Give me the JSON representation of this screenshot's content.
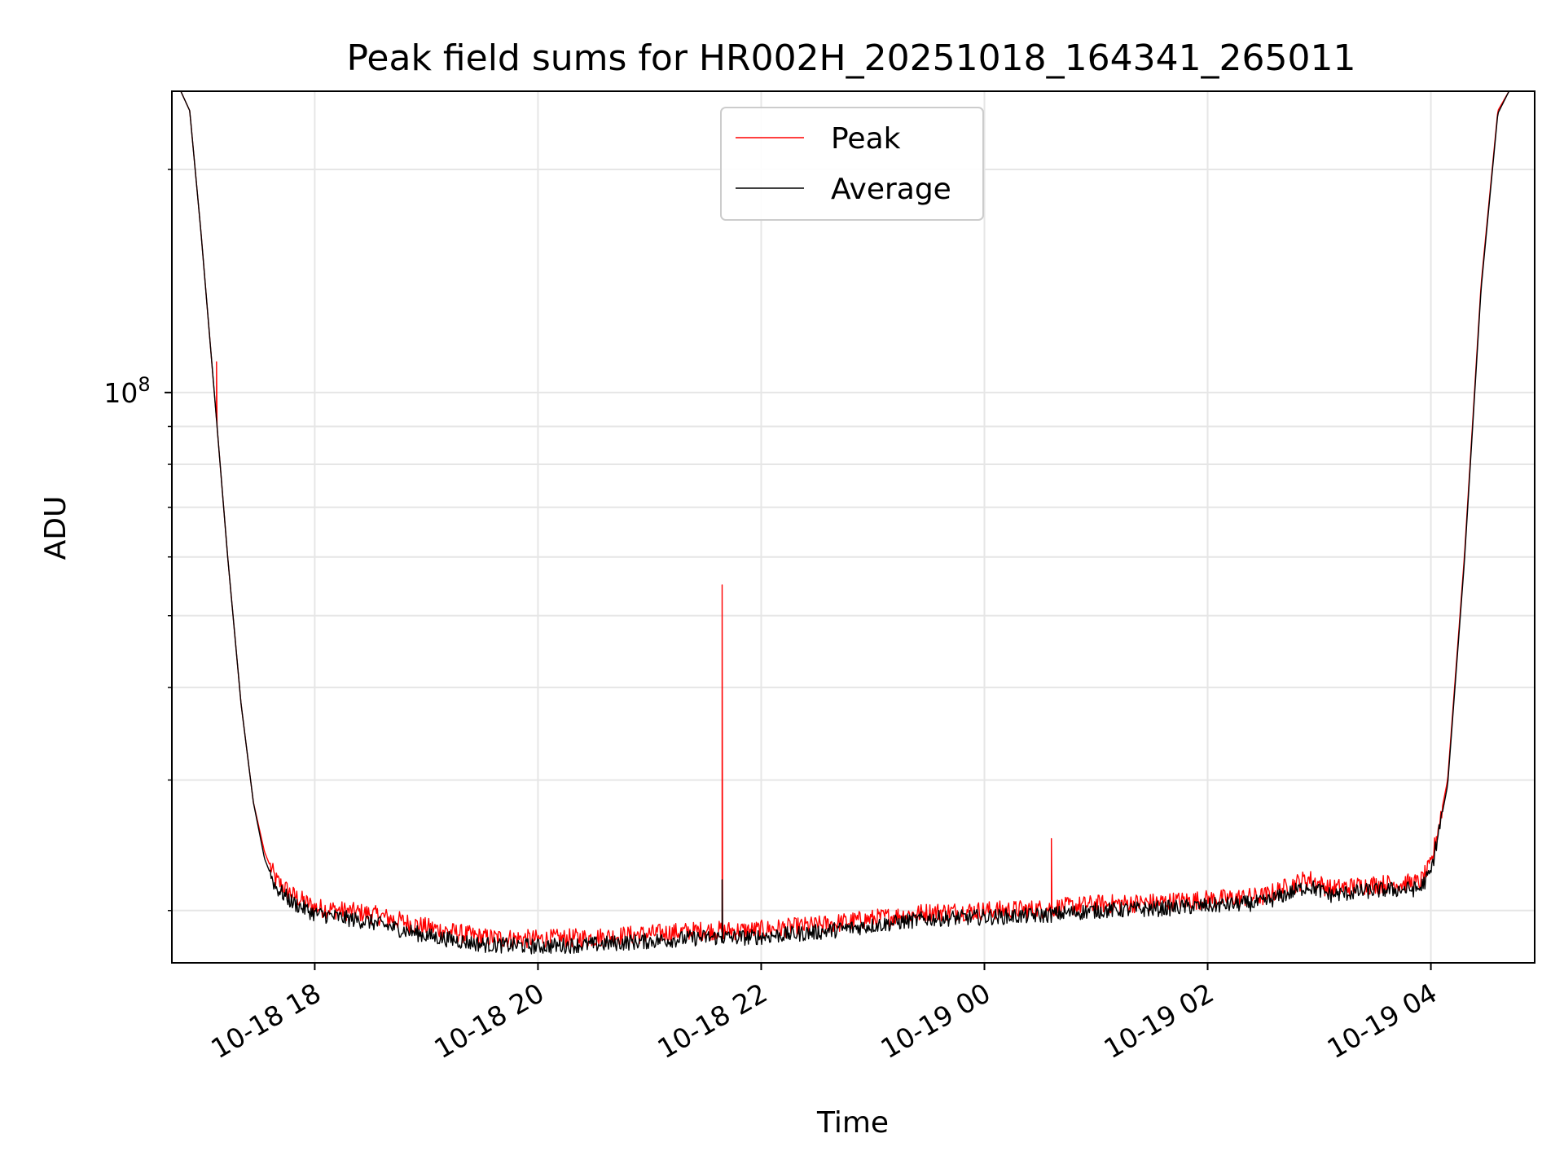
{
  "chart_data": {
    "type": "line",
    "title": "Peak field sums for HR002H_20251018_164341_265011",
    "xlabel": "Time",
    "ylabel": "ADU",
    "yscale": "log",
    "ylim": [
      17000000,
      255000000
    ],
    "xlim_hours": [
      -1.28,
      10.93
    ],
    "x_unit": "hours since 10-18 18:00",
    "grid": true,
    "legend_position": "top-center",
    "x_ticks": [
      {
        "label": "10-18 18",
        "value": 0
      },
      {
        "label": "10-18 20",
        "value": 2
      },
      {
        "label": "10-18 22",
        "value": 4
      },
      {
        "label": "10-19 00",
        "value": 6
      },
      {
        "label": "10-19 02",
        "value": 8
      },
      {
        "label": "10-19 04",
        "value": 10
      }
    ],
    "y_tick_main": {
      "value": 100000000,
      "base": "10",
      "exp": "8"
    },
    "y_minor_ticks": [
      20000000,
      30000000,
      40000000,
      50000000,
      60000000,
      70000000,
      80000000,
      90000000,
      200000000
    ],
    "series": [
      {
        "name": "Peak",
        "color": "#ff0000",
        "points": [
          [
            -1.2,
            255000000
          ],
          [
            -1.12,
            240000000
          ],
          [
            -1.02,
            165000000
          ],
          [
            -0.9,
            100000000
          ],
          [
            -0.78,
            60000000
          ],
          [
            -0.66,
            38000000
          ],
          [
            -0.55,
            28000000
          ],
          [
            -0.45,
            24000000
          ],
          [
            -0.35,
            22000000
          ],
          [
            -0.2,
            21000000
          ],
          [
            0.0,
            20200000
          ],
          [
            0.5,
            19800000
          ],
          [
            1.0,
            19000000
          ],
          [
            1.5,
            18400000
          ],
          [
            2.0,
            18300000
          ],
          [
            2.5,
            18400000
          ],
          [
            3.0,
            18600000
          ],
          [
            3.5,
            18800000
          ],
          [
            3.9,
            18800000
          ],
          [
            4.5,
            19100000
          ],
          [
            5.0,
            19500000
          ],
          [
            5.5,
            19900000
          ],
          [
            6.0,
            20000000
          ],
          [
            6.5,
            20100000
          ],
          [
            7.0,
            20400000
          ],
          [
            7.5,
            20500000
          ],
          [
            8.0,
            20700000
          ],
          [
            8.5,
            20900000
          ],
          [
            8.8,
            21800000
          ],
          [
            8.9,
            22100000
          ],
          [
            9.1,
            21400000
          ],
          [
            9.5,
            21700000
          ],
          [
            9.9,
            21800000
          ],
          [
            10.0,
            23000000
          ],
          [
            10.15,
            30000000
          ],
          [
            10.3,
            60000000
          ],
          [
            10.45,
            140000000
          ],
          [
            10.6,
            240000000
          ],
          [
            10.7,
            255000000
          ]
        ],
        "noise_ratio": 0.03,
        "spikes": [
          {
            "x": 3.65,
            "y": 55000000
          },
          {
            "x": 6.6,
            "y": 25000000
          },
          {
            "x": -0.88,
            "y": 110000000
          }
        ]
      },
      {
        "name": "Average",
        "color": "#000000",
        "points": [
          [
            -1.2,
            255000000
          ],
          [
            -1.12,
            240000000
          ],
          [
            -1.02,
            165000000
          ],
          [
            -0.9,
            100000000
          ],
          [
            -0.78,
            60000000
          ],
          [
            -0.66,
            38000000
          ],
          [
            -0.55,
            28000000
          ],
          [
            -0.45,
            23500000
          ],
          [
            -0.35,
            21500000
          ],
          [
            -0.2,
            20500000
          ],
          [
            0.0,
            19800000
          ],
          [
            0.5,
            19300000
          ],
          [
            1.0,
            18500000
          ],
          [
            1.5,
            18000000
          ],
          [
            2.0,
            17900000
          ],
          [
            2.5,
            18000000
          ],
          [
            3.0,
            18200000
          ],
          [
            3.5,
            18400000
          ],
          [
            3.9,
            18400000
          ],
          [
            4.5,
            18700000
          ],
          [
            5.0,
            19100000
          ],
          [
            5.5,
            19500000
          ],
          [
            6.0,
            19600000
          ],
          [
            6.5,
            19700000
          ],
          [
            7.0,
            20000000
          ],
          [
            7.5,
            20100000
          ],
          [
            8.0,
            20300000
          ],
          [
            8.5,
            20500000
          ],
          [
            8.8,
            21300000
          ],
          [
            8.9,
            21600000
          ],
          [
            9.1,
            21000000
          ],
          [
            9.5,
            21300000
          ],
          [
            9.9,
            21400000
          ],
          [
            10.0,
            22500000
          ],
          [
            10.15,
            29500000
          ],
          [
            10.3,
            59000000
          ],
          [
            10.45,
            138000000
          ],
          [
            10.6,
            238000000
          ],
          [
            10.7,
            255000000
          ]
        ],
        "noise_ratio": 0.025,
        "spikes": [
          {
            "x": 3.65,
            "y": 22000000
          }
        ]
      }
    ]
  }
}
